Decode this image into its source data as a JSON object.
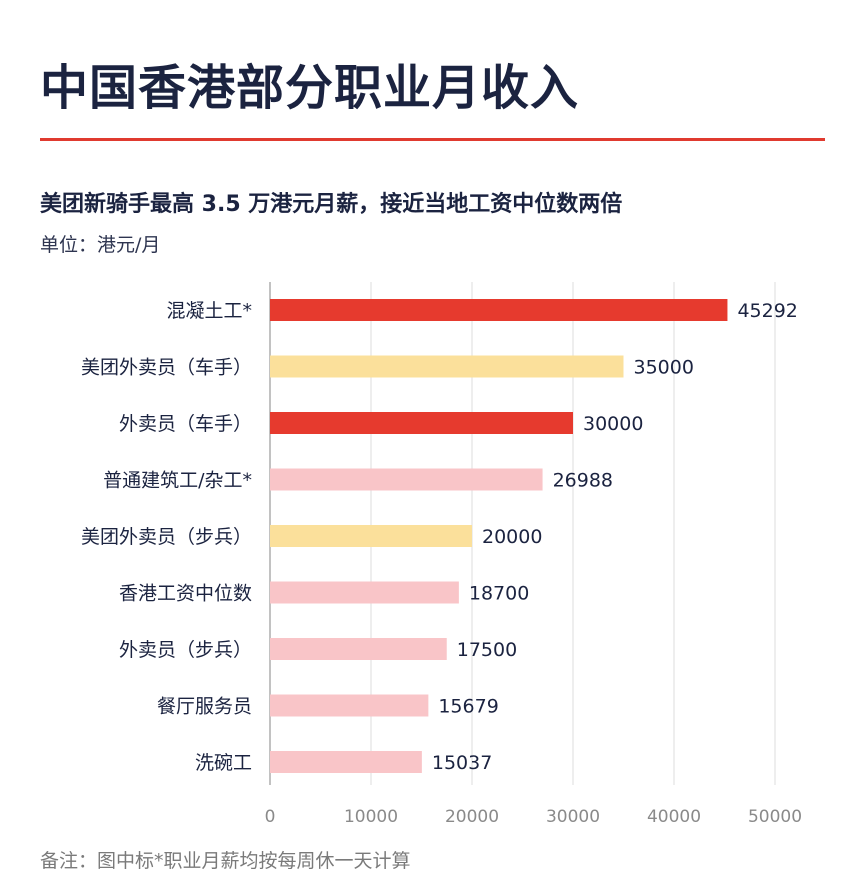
{
  "header": {
    "title": "中国香港部分职业月收入",
    "subtitle": "美团新骑手最高 3.5 万港元月薪，接近当地工资中位数两倍",
    "unit": "单位：港元/月"
  },
  "footnote": "备注：图中标*职业月薪均按每周休一天计算",
  "colors": {
    "red": "#e63a2e",
    "yellow": "#fbe09b",
    "pink": "#f9c5c8",
    "rule": "#e03a2f"
  },
  "chart_data": {
    "type": "bar",
    "orientation": "horizontal",
    "categories": [
      "混凝土工*",
      "美团外卖员（车手）",
      "外卖员（车手）",
      "普通建筑工/杂工*",
      "美团外卖员（步兵）",
      "香港工资中位数",
      "外卖员（步兵）",
      "餐厅服务员",
      "洗碗工"
    ],
    "values": [
      45292,
      35000,
      30000,
      26988,
      20000,
      18700,
      17500,
      15679,
      15037
    ],
    "bar_colors": [
      "red",
      "yellow",
      "red",
      "pink",
      "yellow",
      "pink",
      "pink",
      "pink",
      "pink"
    ],
    "xlim": [
      0,
      50000
    ],
    "xticks": [
      0,
      10000,
      20000,
      30000,
      40000,
      50000
    ],
    "grid": true
  }
}
